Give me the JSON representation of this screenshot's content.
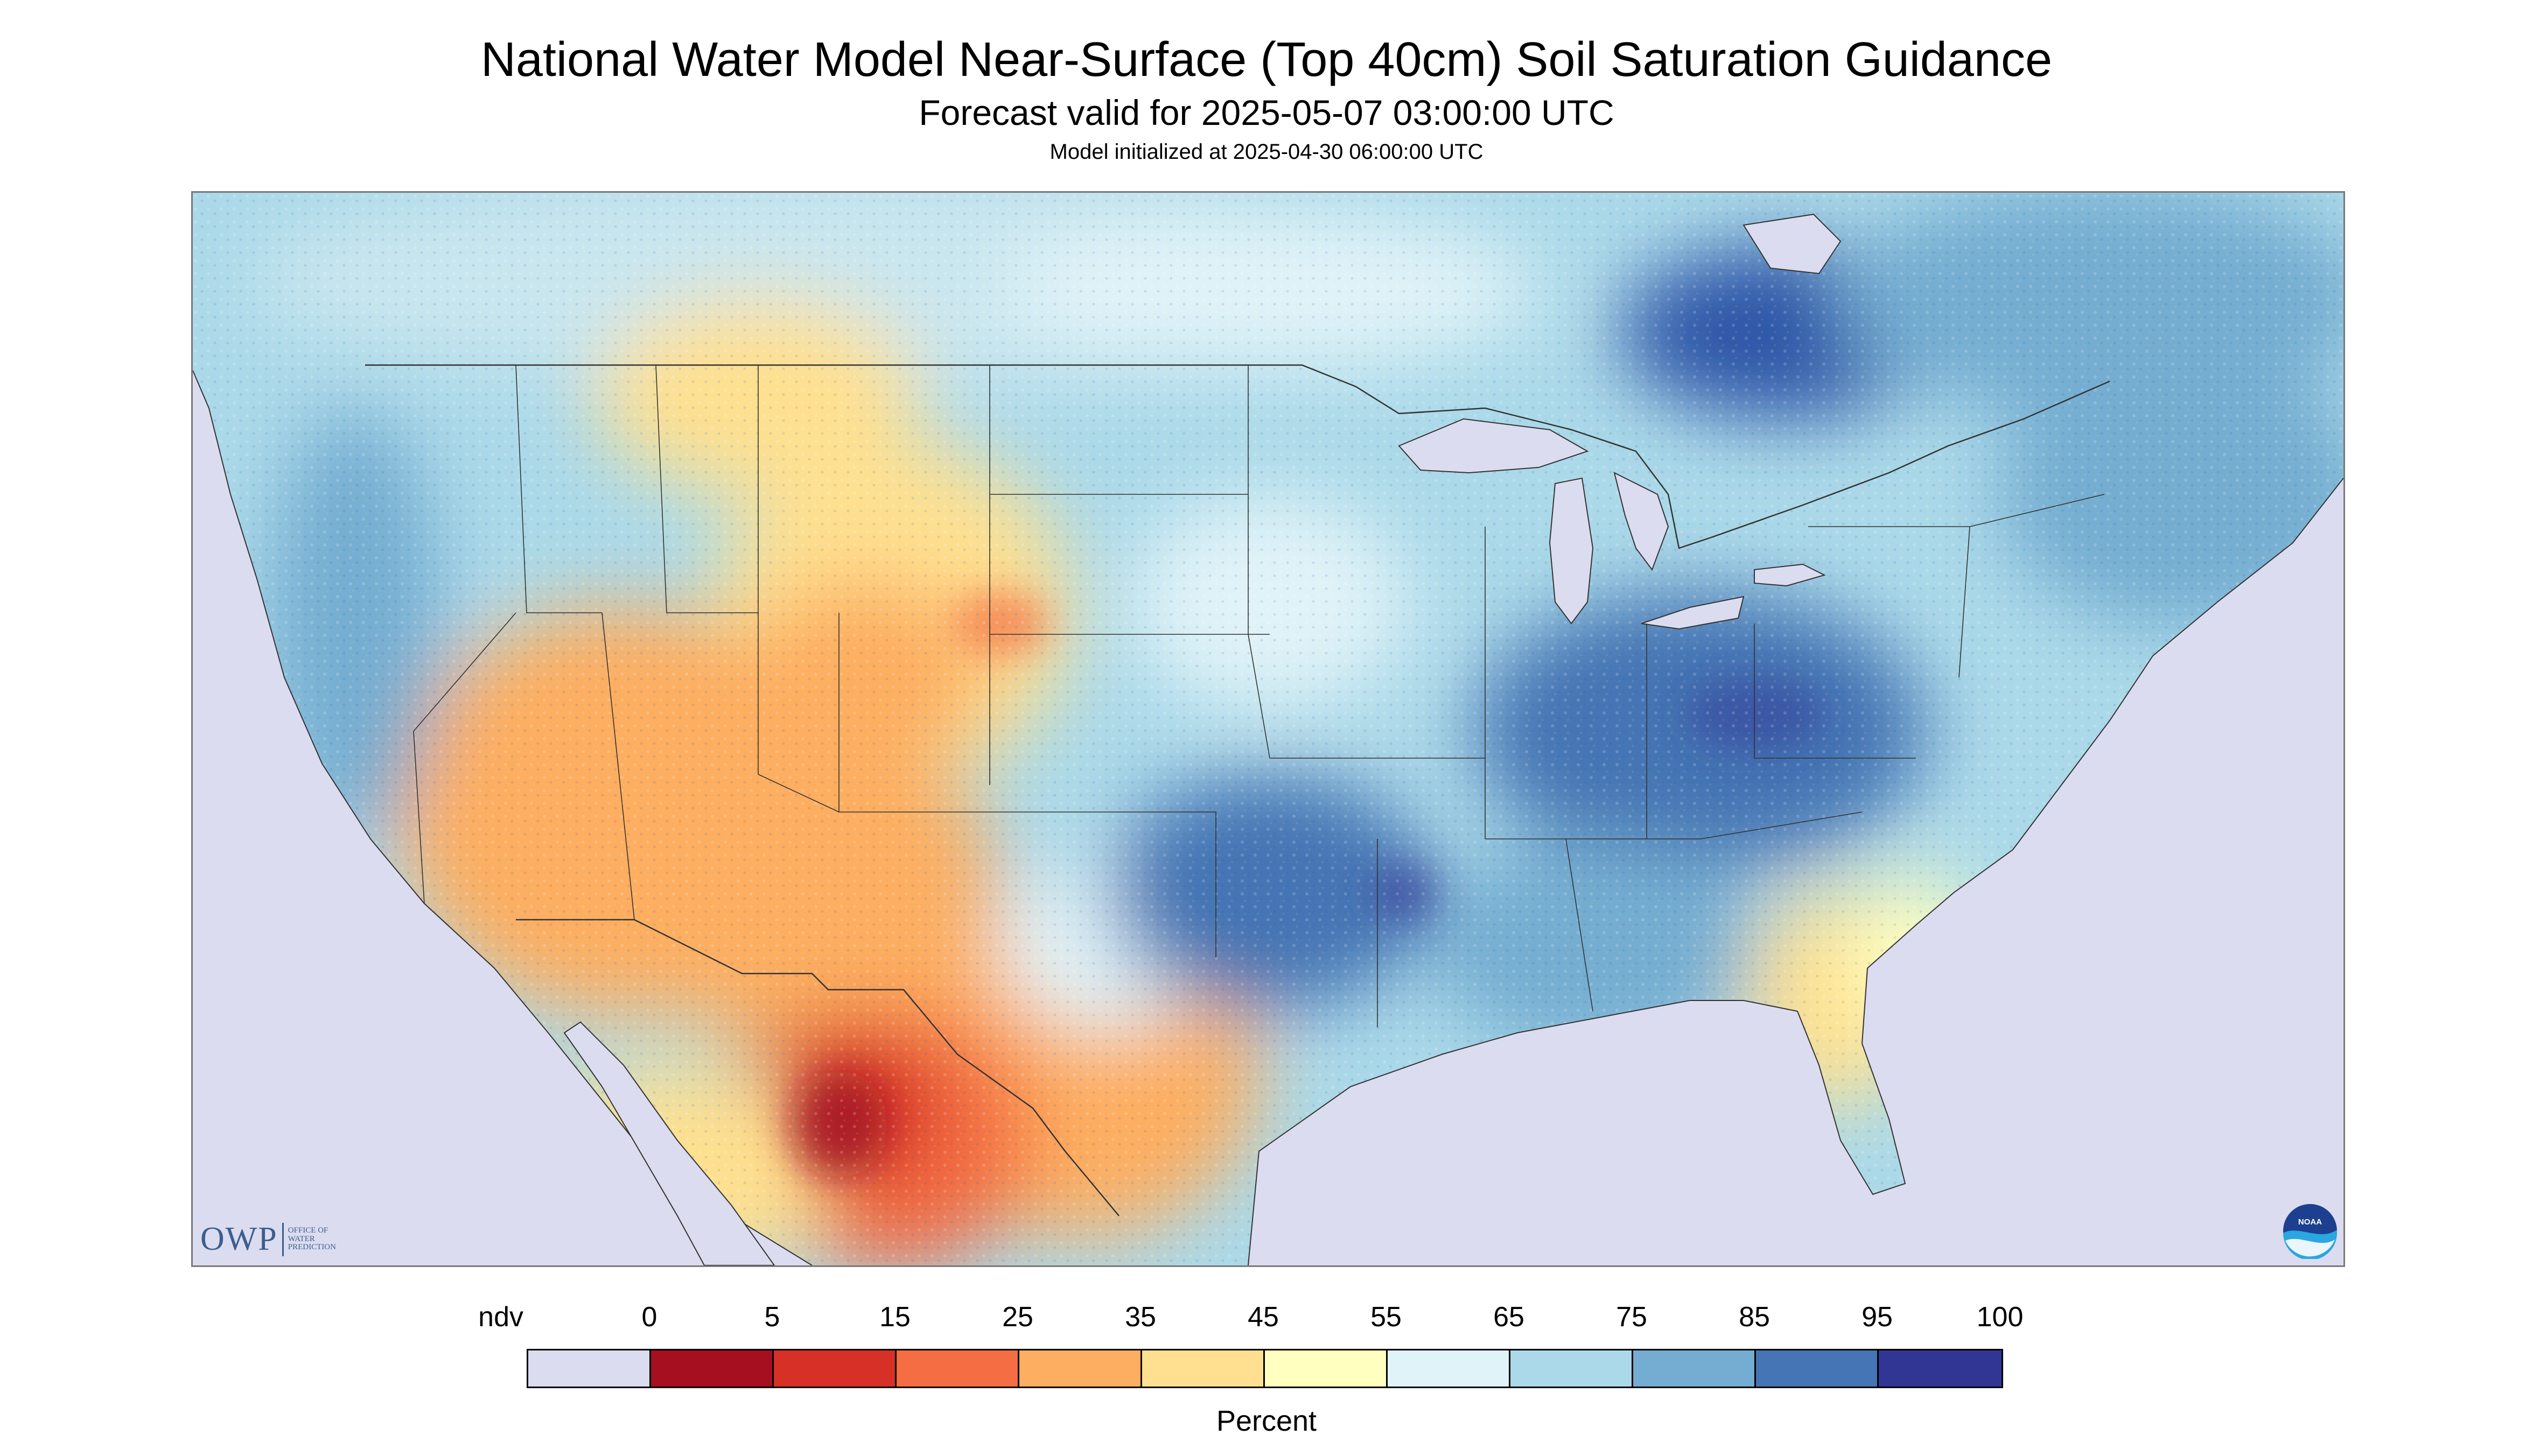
{
  "title": "National Water Model Near-Surface (Top 40cm) Soil Saturation Guidance",
  "subtitle": "Forecast valid for 2025-05-07 03:00:00 UTC",
  "init_line": "Model initialized at 2025-04-30 06:00:00 UTC",
  "logo_owp": {
    "main": "OWP",
    "sub_lines": [
      "OFFICE OF",
      "WATER",
      "PREDICTION"
    ]
  },
  "logo_noaa": "NOAA",
  "legend": {
    "unit": "Percent",
    "ticks": [
      "ndv",
      "0",
      "5",
      "15",
      "25",
      "35",
      "45",
      "55",
      "65",
      "75",
      "85",
      "95",
      "100"
    ],
    "colors": [
      "#dcdcf0",
      "#a50f1f",
      "#d73027",
      "#f46d43",
      "#fdae61",
      "#fee090",
      "#ffffbf",
      "#e0f3f8",
      "#abd9e9",
      "#74add1",
      "#4575b4",
      "#313695"
    ]
  },
  "map_colors": {
    "nodata": "#dcdcf0",
    "water": "#dcdcf0",
    "boundary": "#333333"
  }
}
